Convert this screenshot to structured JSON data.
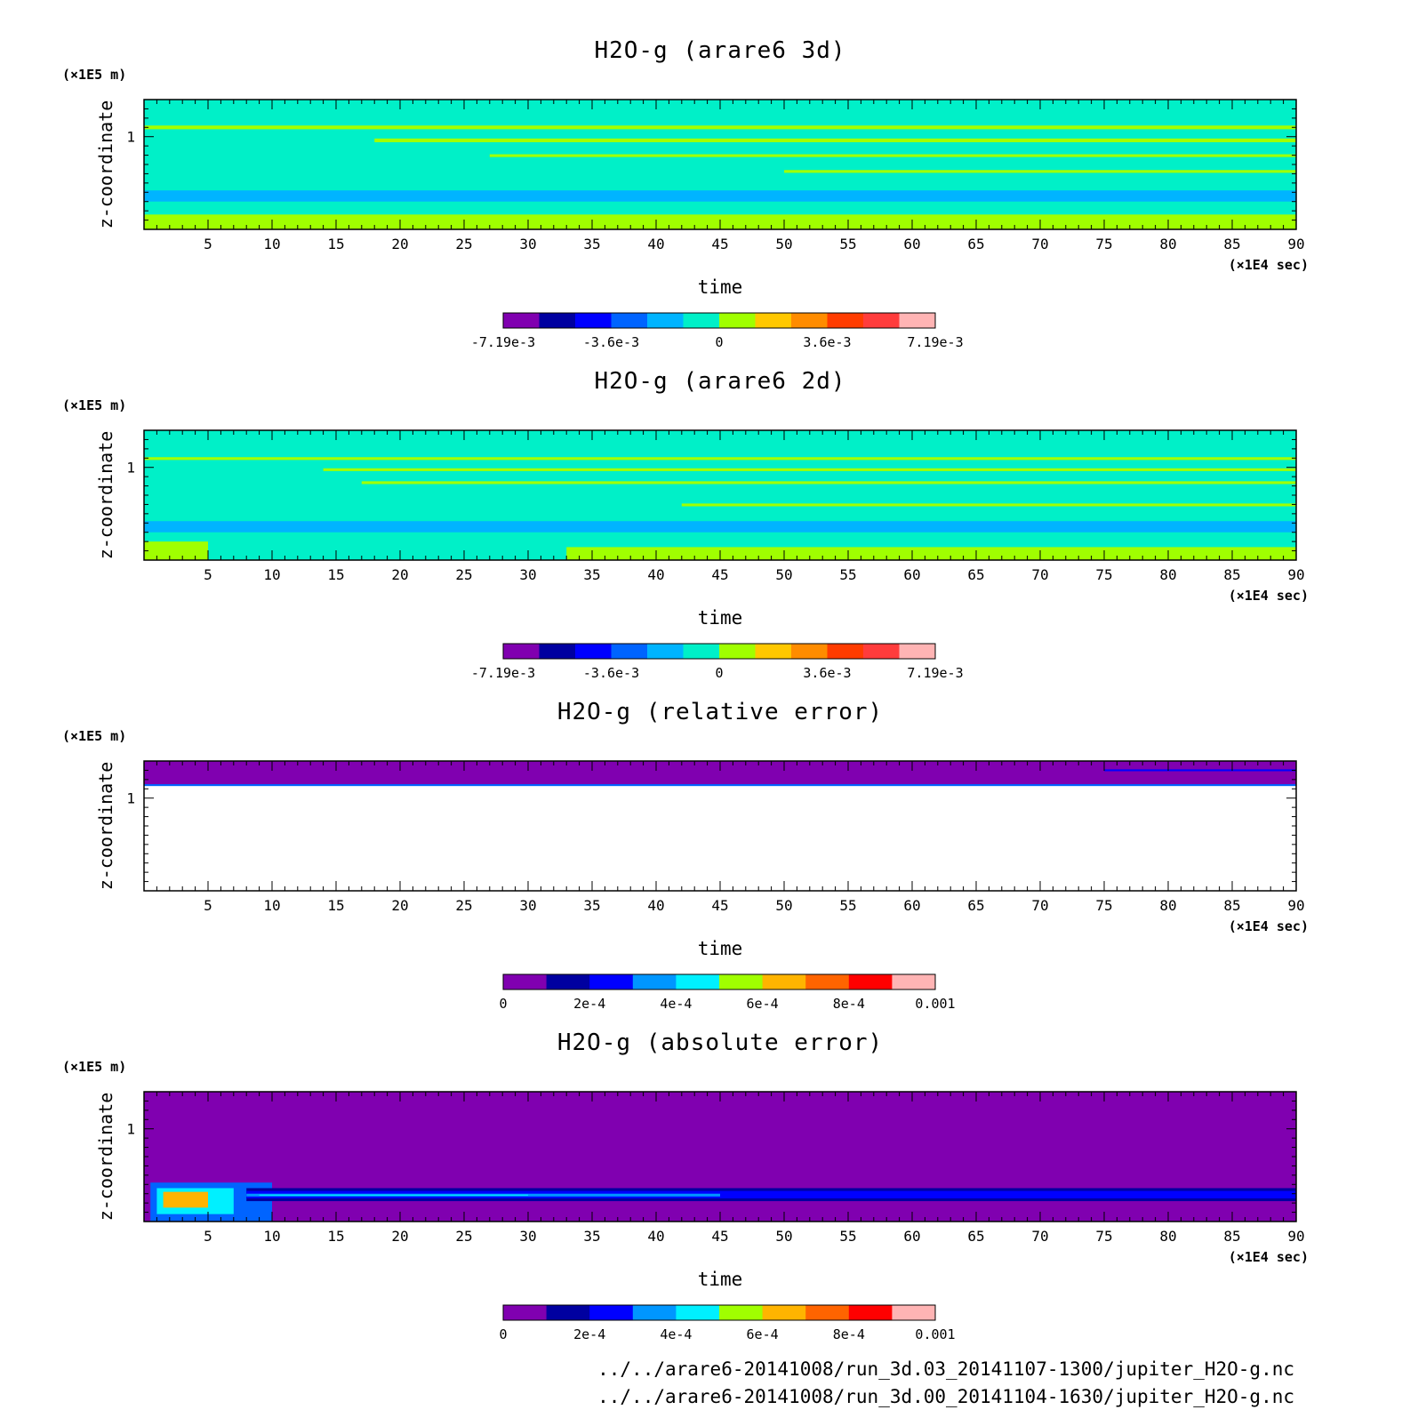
{
  "source_files": [
    "../../arare6-20141008/run_3d.03_20141107-1300/jupiter_H2O-g.nc",
    "../../arare6-20141008/run_3d.00_20141104-1630/jupiter_H2O-g.nc"
  ],
  "chart_data": [
    {
      "type": "heatmap",
      "title": "H2O-g (arare6 3d)",
      "xlabel": "time",
      "x_unit": "(×1E4 sec)",
      "ylabel": "z-coordinate",
      "y_unit": "(×1E5 m)",
      "xlim": [
        0,
        90
      ],
      "ylim": [
        0,
        1.4
      ],
      "xticks": [
        5,
        10,
        15,
        20,
        25,
        30,
        35,
        40,
        45,
        50,
        55,
        60,
        65,
        70,
        75,
        80,
        85,
        90
      ],
      "yticks": [
        1
      ],
      "background": "#00f0c8",
      "bands": [
        {
          "x0": 0,
          "x1": 90,
          "y0": 0.0,
          "y1": 0.16,
          "color": "#a0ff00"
        },
        {
          "x0": 0,
          "x1": 90,
          "y0": 0.3,
          "y1": 0.42,
          "color": "#00b4ff"
        },
        {
          "x0": 0,
          "x1": 90,
          "y0": 1.08,
          "y1": 1.12,
          "color": "#a0ff00"
        },
        {
          "x0": 18,
          "x1": 90,
          "y0": 0.94,
          "y1": 0.98,
          "color": "#a0ff00"
        },
        {
          "x0": 27,
          "x1": 90,
          "y0": 0.78,
          "y1": 0.81,
          "color": "#a0ff00"
        },
        {
          "x0": 50,
          "x1": 90,
          "y0": 0.61,
          "y1": 0.64,
          "color": "#a0ff00"
        }
      ],
      "colorbar": {
        "colors": [
          "#8000b0",
          "#0000a0",
          "#0000ff",
          "#0064ff",
          "#00b4ff",
          "#00f0c8",
          "#a0ff00",
          "#ffc800",
          "#ff8c00",
          "#ff3c00",
          "#ff3c3c",
          "#ffb4b4"
        ],
        "labels": [
          "-7.19e-3",
          "-3.6e-3",
          "0",
          "3.6e-3",
          "7.19e-3"
        ],
        "label_positions": [
          0,
          3,
          6,
          9,
          12
        ]
      }
    },
    {
      "type": "heatmap",
      "title": "H2O-g (arare6 2d)",
      "xlabel": "time",
      "x_unit": "(×1E4 sec)",
      "ylabel": "z-coordinate",
      "y_unit": "(×1E5 m)",
      "xlim": [
        0,
        90
      ],
      "ylim": [
        0,
        1.4
      ],
      "xticks": [
        5,
        10,
        15,
        20,
        25,
        30,
        35,
        40,
        45,
        50,
        55,
        60,
        65,
        70,
        75,
        80,
        85,
        90
      ],
      "yticks": [
        1
      ],
      "background": "#00f0c8",
      "bands": [
        {
          "x0": 33,
          "x1": 90,
          "y0": 0.0,
          "y1": 0.14,
          "color": "#a0ff00"
        },
        {
          "x0": 0,
          "x1": 5,
          "y0": 0.0,
          "y1": 0.2,
          "color": "#a0ff00"
        },
        {
          "x0": 0,
          "x1": 90,
          "y0": 0.3,
          "y1": 0.42,
          "color": "#00b4ff"
        },
        {
          "x0": 0,
          "x1": 90,
          "y0": 1.08,
          "y1": 1.11,
          "color": "#a0ff00"
        },
        {
          "x0": 14,
          "x1": 90,
          "y0": 0.96,
          "y1": 0.99,
          "color": "#a0ff00"
        },
        {
          "x0": 17,
          "x1": 90,
          "y0": 0.82,
          "y1": 0.85,
          "color": "#a0ff00"
        },
        {
          "x0": 42,
          "x1": 90,
          "y0": 0.58,
          "y1": 0.61,
          "color": "#a0ff00"
        }
      ],
      "colorbar": {
        "colors": [
          "#8000b0",
          "#0000a0",
          "#0000ff",
          "#0064ff",
          "#00b4ff",
          "#00f0c8",
          "#a0ff00",
          "#ffc800",
          "#ff8c00",
          "#ff3c00",
          "#ff3c3c",
          "#ffb4b4"
        ],
        "labels": [
          "-7.19e-3",
          "-3.6e-3",
          "0",
          "3.6e-3",
          "7.19e-3"
        ],
        "label_positions": [
          0,
          3,
          6,
          9,
          12
        ]
      }
    },
    {
      "type": "heatmap",
      "title": "H2O-g (relative error)",
      "xlabel": "time",
      "x_unit": "(×1E4 sec)",
      "ylabel": "z-coordinate",
      "y_unit": "(×1E5 m)",
      "xlim": [
        0,
        90
      ],
      "ylim": [
        0,
        1.4
      ],
      "xticks": [
        5,
        10,
        15,
        20,
        25,
        30,
        35,
        40,
        45,
        50,
        55,
        60,
        65,
        70,
        75,
        80,
        85,
        90
      ],
      "yticks": [
        1
      ],
      "background": "#ffffff",
      "bands": [
        {
          "x0": 0,
          "x1": 90,
          "y0": 1.14,
          "y1": 1.4,
          "color": "#8000b0"
        },
        {
          "x0": 0,
          "x1": 90,
          "y0": 1.13,
          "y1": 1.15,
          "color": "#0064ff"
        },
        {
          "x0": 75,
          "x1": 90,
          "y0": 1.29,
          "y1": 1.31,
          "color": "#0000ff"
        }
      ],
      "colorbar": {
        "colors": [
          "#8000b0",
          "#0000a0",
          "#0000ff",
          "#0096ff",
          "#00f0ff",
          "#a0ff00",
          "#ffb400",
          "#ff6400",
          "#ff0000",
          "#ffb4b4"
        ],
        "labels": [
          "0",
          "2e-4",
          "4e-4",
          "6e-4",
          "8e-4",
          "0.001"
        ],
        "label_positions": [
          0,
          2,
          4,
          6,
          8,
          10
        ]
      }
    },
    {
      "type": "heatmap",
      "title": "H2O-g (absolute error)",
      "xlabel": "time",
      "x_unit": "(×1E4 sec)",
      "ylabel": "z-coordinate",
      "y_unit": "(×1E5 m)",
      "xlim": [
        0,
        90
      ],
      "ylim": [
        0,
        1.4
      ],
      "xticks": [
        5,
        10,
        15,
        20,
        25,
        30,
        35,
        40,
        45,
        50,
        55,
        60,
        65,
        70,
        75,
        80,
        85,
        90
      ],
      "yticks": [
        1
      ],
      "background": "#8000b0",
      "bands": [
        {
          "x0": 0.5,
          "x1": 10,
          "y0": 0.0,
          "y1": 0.42,
          "color": "#0064ff"
        },
        {
          "x0": 1,
          "x1": 7,
          "y0": 0.08,
          "y1": 0.36,
          "color": "#00f0ff"
        },
        {
          "x0": 1.5,
          "x1": 5,
          "y0": 0.15,
          "y1": 0.32,
          "color": "#ffb400"
        },
        {
          "x0": 8,
          "x1": 90,
          "y0": 0.22,
          "y1": 0.36,
          "color": "#0000a0"
        },
        {
          "x0": 8,
          "x1": 90,
          "y0": 0.25,
          "y1": 0.33,
          "color": "#0000ff"
        },
        {
          "x0": 8,
          "x1": 45,
          "y0": 0.27,
          "y1": 0.3,
          "color": "#0096ff"
        },
        {
          "x0": 9,
          "x1": 30,
          "y0": 0.28,
          "y1": 0.29,
          "color": "#00f0ff"
        }
      ],
      "colorbar": {
        "colors": [
          "#8000b0",
          "#0000a0",
          "#0000ff",
          "#0096ff",
          "#00f0ff",
          "#a0ff00",
          "#ffb400",
          "#ff6400",
          "#ff0000",
          "#ffb4b4"
        ],
        "labels": [
          "0",
          "2e-4",
          "4e-4",
          "6e-4",
          "8e-4",
          "0.001"
        ],
        "label_positions": [
          0,
          2,
          4,
          6,
          8,
          10
        ]
      }
    }
  ]
}
